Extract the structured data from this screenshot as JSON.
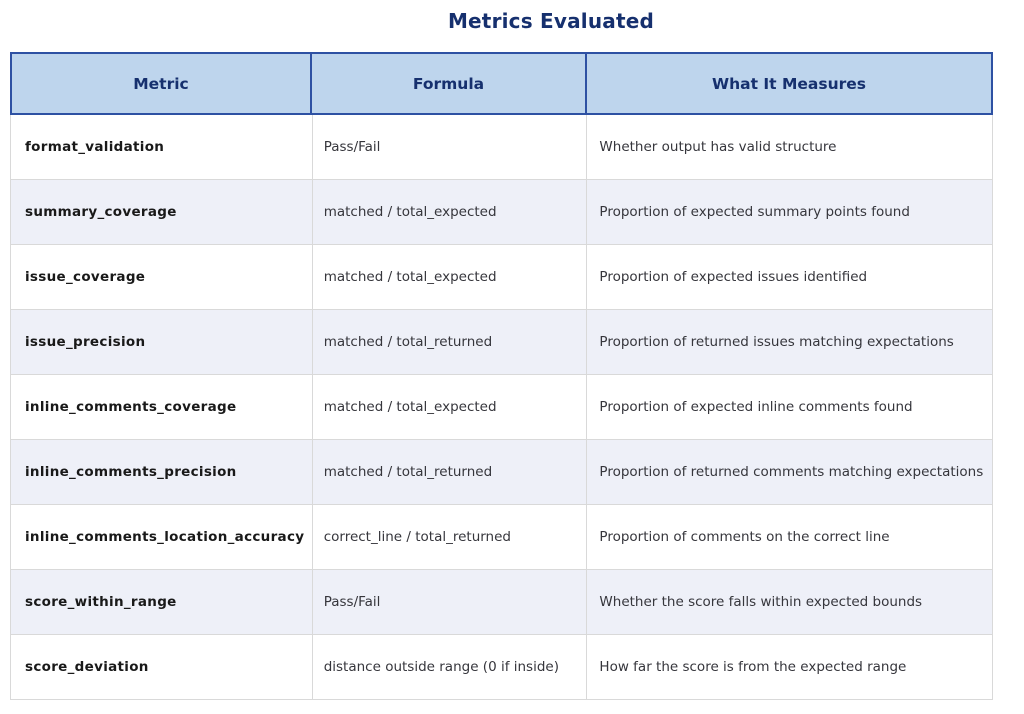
{
  "figure": {
    "title": "Metrics Evaluated"
  },
  "colors": {
    "title_text": "#16306e",
    "header_bg": "#bed5ed",
    "header_text": "#16306e",
    "header_border": "#2e51a3",
    "row_alt_bg": "#eef0f8",
    "body_border": "#d9d9d9",
    "metric_text": "#191919",
    "body_text": "#36363c"
  },
  "chart_data": {
    "type": "table",
    "title": "Metrics Evaluated",
    "columns": [
      "Metric",
      "Formula",
      "What It Measures"
    ],
    "rows": [
      [
        "format_validation",
        "Pass/Fail",
        "Whether output has valid structure"
      ],
      [
        "summary_coverage",
        "matched / total_expected",
        "Proportion of expected summary points found"
      ],
      [
        "issue_coverage",
        "matched / total_expected",
        "Proportion of expected issues identified"
      ],
      [
        "issue_precision",
        "matched / total_returned",
        "Proportion of returned issues matching expectations"
      ],
      [
        "inline_comments_coverage",
        "matched / total_expected",
        "Proportion of expected inline comments found"
      ],
      [
        "inline_comments_precision",
        "matched / total_returned",
        "Proportion of returned comments matching expectations"
      ],
      [
        "inline_comments_location_accuracy",
        "correct_line / total_returned",
        "Proportion of comments on the correct line"
      ],
      [
        "score_within_range",
        "Pass/Fail",
        "Whether the score falls within expected bounds"
      ],
      [
        "score_deviation",
        "distance outside range (0 if inside)",
        "How far the score is from the expected range"
      ]
    ],
    "layout": {
      "zebra_striping": true,
      "striped_row_indexes": [
        1,
        3,
        5,
        7
      ],
      "header_position": "top"
    }
  }
}
